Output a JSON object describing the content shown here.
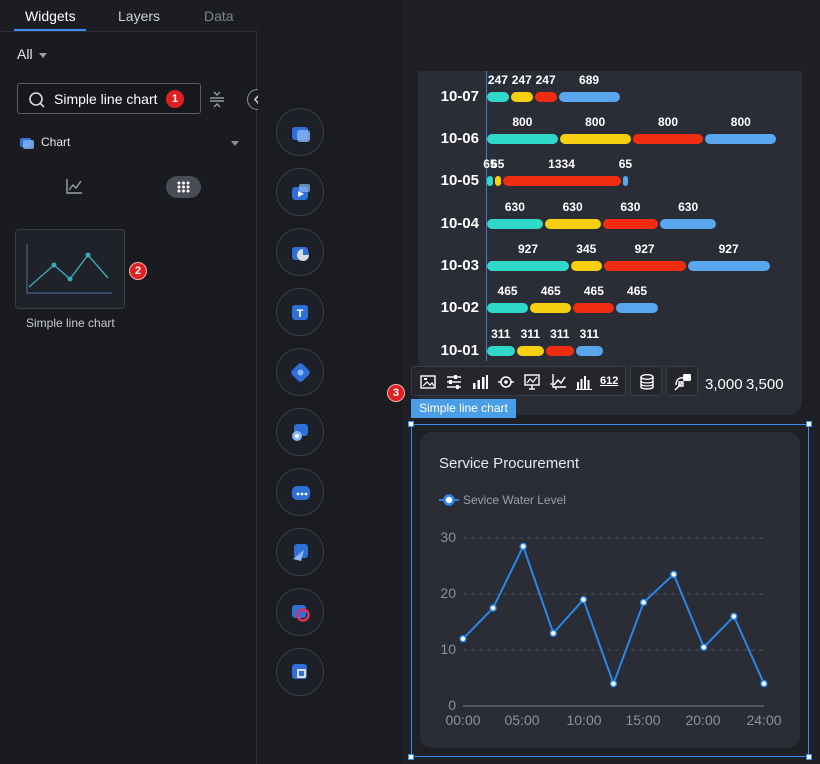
{
  "tabs": [
    {
      "label": "Widgets",
      "active": true
    },
    {
      "label": "Layers",
      "active": false
    },
    {
      "label": "Data",
      "active": false
    }
  ],
  "filter": {
    "selected": "All"
  },
  "search": {
    "value": "Simple line chart"
  },
  "badges": {
    "search": "1",
    "tile": "2",
    "toolbar": "3"
  },
  "category": {
    "label": "Chart"
  },
  "widget_tile": {
    "label": "Simple line chart"
  },
  "component_strip": [
    {
      "icon": "map-widget-icon"
    },
    {
      "icon": "media-widget-icon"
    },
    {
      "icon": "pie-widget-icon"
    },
    {
      "icon": "text-widget-icon"
    },
    {
      "icon": "puzzle-widget-icon"
    },
    {
      "icon": "graph-widget-icon"
    },
    {
      "icon": "more-widget-icon"
    },
    {
      "icon": "navigation-widget-icon"
    },
    {
      "icon": "ring-widget-icon"
    },
    {
      "icon": "box-widget-icon"
    }
  ],
  "toolbar": {
    "icons": [
      "image-icon",
      "sliders-icon",
      "bar-chart-icon",
      "target-icon",
      "screen-icon",
      "axis-icon",
      "column-chart-icon",
      "number-icon",
      "database-icon",
      "link-icon"
    ],
    "number_label": "612"
  },
  "selection_label": "Simple line chart",
  "chart_data": [
    {
      "type": "bar",
      "title": "",
      "categories": [
        "10-07",
        "10-06",
        "10-05",
        "10-04",
        "10-03",
        "10-02",
        "10-01"
      ],
      "series": [
        {
          "values": [
            247,
            800,
            65,
            630,
            927,
            465,
            311
          ]
        },
        {
          "values": [
            247,
            800,
            65,
            630,
            345,
            465,
            311
          ]
        },
        {
          "values": [
            247,
            800,
            1334,
            630,
            927,
            465,
            311
          ]
        },
        {
          "values": [
            689,
            800,
            65,
            630,
            927,
            465,
            311
          ]
        }
      ],
      "stacked": true,
      "orientation": "horizontal",
      "x_tick_labels": [
        "3,000",
        "3,500"
      ],
      "colors": [
        "#2fd8c8",
        "#f5cf10",
        "#f02d10",
        "#5aa6ee"
      ]
    },
    {
      "type": "line",
      "title": "Service Procurement",
      "series": [
        {
          "name": "Sevice Water Level",
          "x": [
            "00:00",
            "02:30",
            "05:00",
            "07:30",
            "10:00",
            "12:30",
            "15:00",
            "17:30",
            "20:00",
            "22:30",
            "24:00"
          ],
          "values": [
            12,
            17.5,
            28.5,
            13,
            19,
            4,
            18.5,
            23.5,
            10.5,
            16,
            4
          ]
        }
      ],
      "x_tick_labels": [
        "00:00",
        "05:00",
        "10:00",
        "15:00",
        "20:00",
        "24:00"
      ],
      "y_tick_labels": [
        "0",
        "10",
        "20",
        "30"
      ],
      "ylim": [
        0,
        30
      ],
      "grid": true,
      "legend_position": "top-left",
      "line_color": "#2a86e8"
    }
  ]
}
